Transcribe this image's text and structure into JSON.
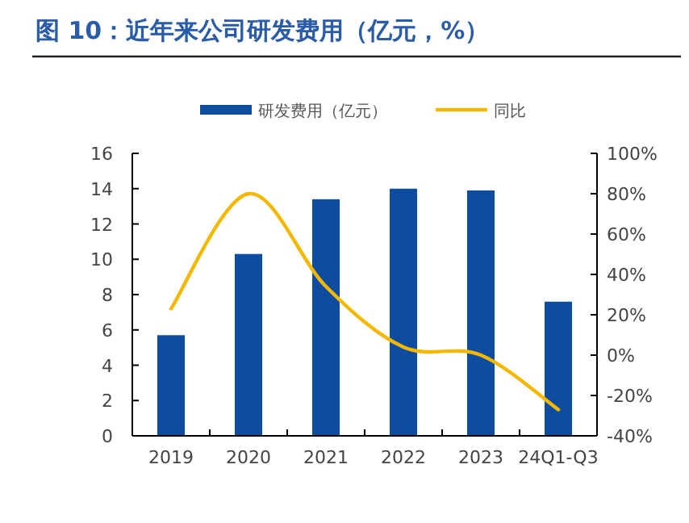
{
  "chart_data": {
    "type": "bar",
    "title": "图 10：近年来公司研发费用（亿元，%）",
    "categories": [
      "2019",
      "2020",
      "2021",
      "2022",
      "2023",
      "24Q1-Q3"
    ],
    "series": [
      {
        "name": "研发费用（亿元）",
        "color": "#0d4c9e",
        "values": [
          5.7,
          10.3,
          13.4,
          14.0,
          13.9,
          7.6
        ]
      },
      {
        "name": "同比",
        "type": "line",
        "axis": "y2",
        "color": "#f5b800",
        "values": [
          23,
          80,
          34,
          4,
          0,
          -27
        ]
      }
    ],
    "ylim": [
      0,
      16
    ],
    "yticks": [
      0,
      2,
      4,
      6,
      8,
      10,
      12,
      14,
      16
    ],
    "y2lim": [
      -40,
      100
    ],
    "y2ticks": [
      {
        "value": -40,
        "label": "-40%"
      },
      {
        "value": -20,
        "label": "-20%"
      },
      {
        "value": 0,
        "label": "0%"
      },
      {
        "value": 20,
        "label": "20%"
      },
      {
        "value": 40,
        "label": "40%"
      },
      {
        "value": 60,
        "label": "60%"
      },
      {
        "value": 80,
        "label": "80%"
      },
      {
        "value": 100,
        "label": "100%"
      }
    ],
    "legend": "top"
  }
}
